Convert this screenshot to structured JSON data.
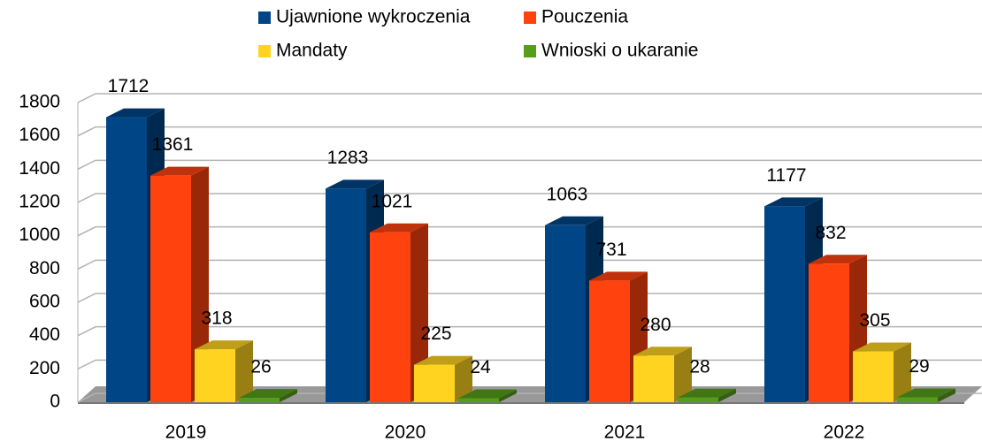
{
  "chart_data": {
    "type": "bar3d",
    "categories": [
      "2019",
      "2020",
      "2021",
      "2022"
    ],
    "series": [
      {
        "name": "Ujawnione wykroczenia",
        "color": "#004586",
        "values": [
          1712,
          1283,
          1063,
          1177
        ]
      },
      {
        "name": "Pouczenia",
        "color": "#ff420e",
        "values": [
          1361,
          1021,
          731,
          832
        ]
      },
      {
        "name": "Mandaty",
        "color": "#ffd320",
        "values": [
          318,
          225,
          280,
          305
        ]
      },
      {
        "name": "Wnioski o ukaranie",
        "color": "#579d1c",
        "values": [
          26,
          24,
          28,
          29
        ]
      }
    ],
    "ylim": [
      0,
      1800
    ],
    "yticks": [
      0,
      200,
      400,
      600,
      800,
      1000,
      1200,
      1400,
      1600,
      1800
    ],
    "grid": true,
    "legend": "top",
    "data_labels": true
  }
}
